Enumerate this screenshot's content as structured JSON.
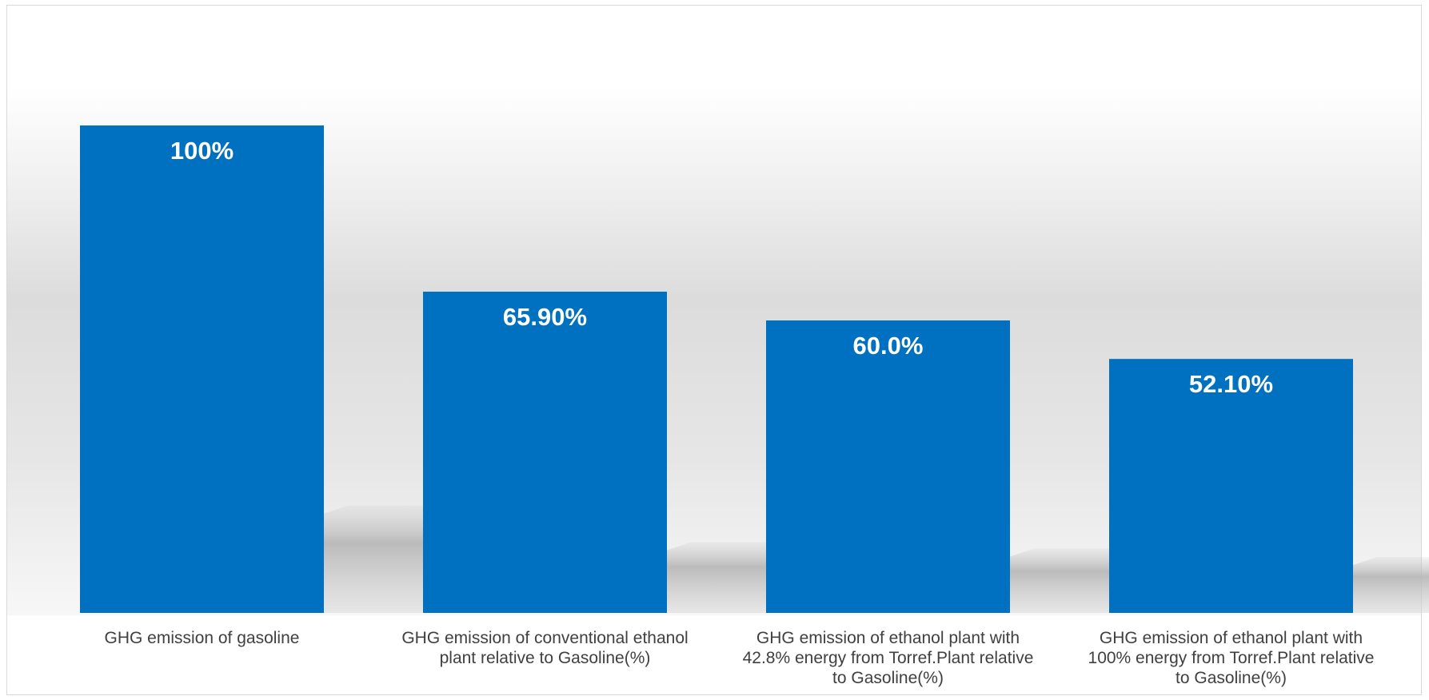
{
  "chart_data": {
    "type": "bar",
    "title": "",
    "xlabel": "",
    "ylabel": "",
    "ylim": [
      0,
      100
    ],
    "grid": false,
    "legend": "none",
    "categories": [
      "GHG emission of gasoline",
      "GHG emission of conventional ethanol plant relative to Gasoline(%)",
      "GHG emission of ethanol plant with 42.8% energy from Torref.Plant relative to Gasoline(%)",
      "GHG emission of ethanol plant with 100% energy from Torref.Plant relative to Gasoline(%)"
    ],
    "category_lines": [
      [
        "GHG emission of gasoline"
      ],
      [
        "GHG emission of conventional ethanol",
        "plant relative to Gasoline(%)"
      ],
      [
        "GHG emission of ethanol plant with",
        "42.8% energy from Torref.Plant relative",
        "to Gasoline(%)"
      ],
      [
        "GHG emission of ethanol plant with",
        "100% energy from Torref.Plant relative",
        "to Gasoline(%)"
      ]
    ],
    "values": [
      100,
      65.9,
      60.0,
      52.1
    ],
    "data_labels": [
      "100%",
      "65.90%",
      "60.0%",
      "52.10%"
    ],
    "colors": {
      "bar": "#0070C0",
      "label": "#FFFFFF",
      "category_text": "#404040",
      "background_band": "#D9D9D9",
      "shadow": "#B3B3B3"
    }
  }
}
